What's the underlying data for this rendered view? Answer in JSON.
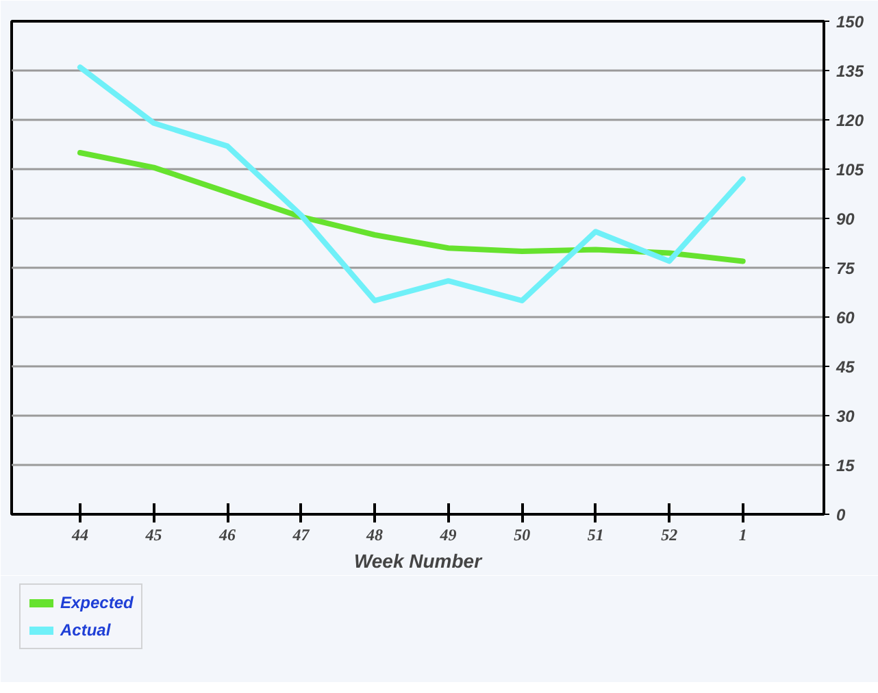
{
  "chart_data": {
    "type": "line",
    "xlabel": "Week Number",
    "categories": [
      "44",
      "45",
      "46",
      "47",
      "48",
      "49",
      "50",
      "51",
      "52",
      "1"
    ],
    "series": [
      {
        "name": "Expected",
        "color": "#66e22e",
        "values": [
          110,
          105.5,
          98,
          90.5,
          85,
          81,
          80,
          80.5,
          79.5,
          77
        ]
      },
      {
        "name": "Actual",
        "color": "#6ff0f8",
        "values": [
          136,
          119,
          112,
          91,
          65,
          71,
          65,
          86,
          77,
          102
        ]
      }
    ],
    "ylim": [
      0,
      150
    ],
    "yticks": [
      0,
      15,
      30,
      45,
      60,
      75,
      90,
      105,
      120,
      135,
      150
    ],
    "grid": "y",
    "legend": "bottom left",
    "marker": "none",
    "line_style": "solid"
  }
}
